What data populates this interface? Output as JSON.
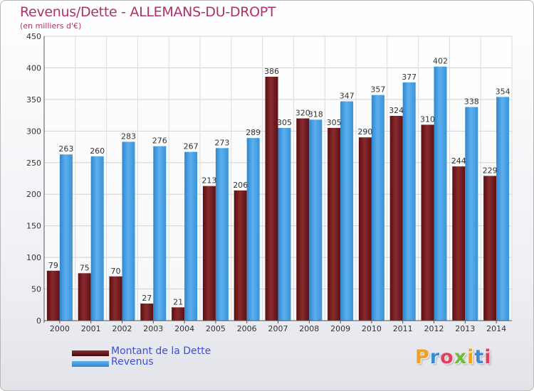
{
  "header": {
    "title": "Revenus/Dette - ALLEMANS-DU-DROPT",
    "subtitle": "(en milliers d'€)"
  },
  "chart_data": {
    "type": "bar",
    "title": "Revenus/Dette - ALLEMANS-DU-DROPT",
    "subtitle": "(en milliers d'€)",
    "categories": [
      "2000",
      "2001",
      "2002",
      "2003",
      "2004",
      "2005",
      "2006",
      "2007",
      "2008",
      "2009",
      "2010",
      "2011",
      "2012",
      "2013",
      "2014"
    ],
    "series": [
      {
        "name": "Montant de la Dette",
        "color": "#7a1f22",
        "values": [
          79,
          75,
          70,
          27,
          21,
          213,
          206,
          386,
          320,
          305,
          290,
          324,
          310,
          244,
          229
        ]
      },
      {
        "name": "Revenus",
        "color": "#4aa3e8",
        "values": [
          263,
          260,
          283,
          276,
          267,
          273,
          289,
          305,
          318,
          347,
          357,
          377,
          402,
          338,
          354
        ]
      }
    ],
    "ylim": [
      0,
      450
    ],
    "yticks": [
      0,
      50,
      100,
      150,
      200,
      250,
      300,
      350,
      400,
      450
    ],
    "grid": true,
    "legend_position": "bottom-left"
  },
  "legend": {
    "items": [
      {
        "label": "Montant de la Dette",
        "color": "#7a1f22"
      },
      {
        "label": "Revenus",
        "color": "#4aa3e8"
      }
    ]
  },
  "logo": {
    "text": "Proxiti",
    "colors": [
      "#f0a020",
      "#3a8ad8",
      "#e04060",
      "#6cbf3a",
      "#f0a020",
      "#3a8ad8",
      "#e04060"
    ]
  }
}
